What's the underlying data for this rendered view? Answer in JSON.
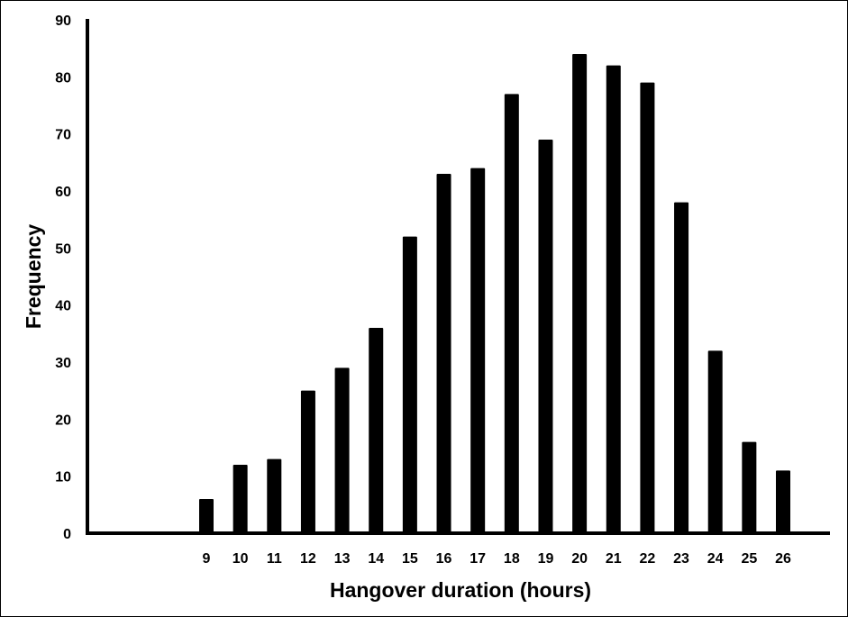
{
  "chart_data": {
    "type": "bar",
    "title": "",
    "xlabel": "Hangover duration (hours)",
    "ylabel": "Frequency",
    "categories": [
      "9",
      "10",
      "11",
      "12",
      "13",
      "14",
      "15",
      "16",
      "17",
      "18",
      "19",
      "20",
      "21",
      "22",
      "23",
      "24",
      "25",
      "26"
    ],
    "values": [
      6,
      12,
      13,
      25,
      29,
      36,
      52,
      63,
      64,
      77,
      69,
      84,
      82,
      79,
      58,
      32,
      16,
      11
    ],
    "ylim": [
      0,
      90
    ],
    "yticks": [
      "0",
      "10",
      "20",
      "30",
      "40",
      "50",
      "60",
      "70",
      "80",
      "90"
    ],
    "grid": false,
    "legend": "none",
    "bar_color": "#000000"
  }
}
